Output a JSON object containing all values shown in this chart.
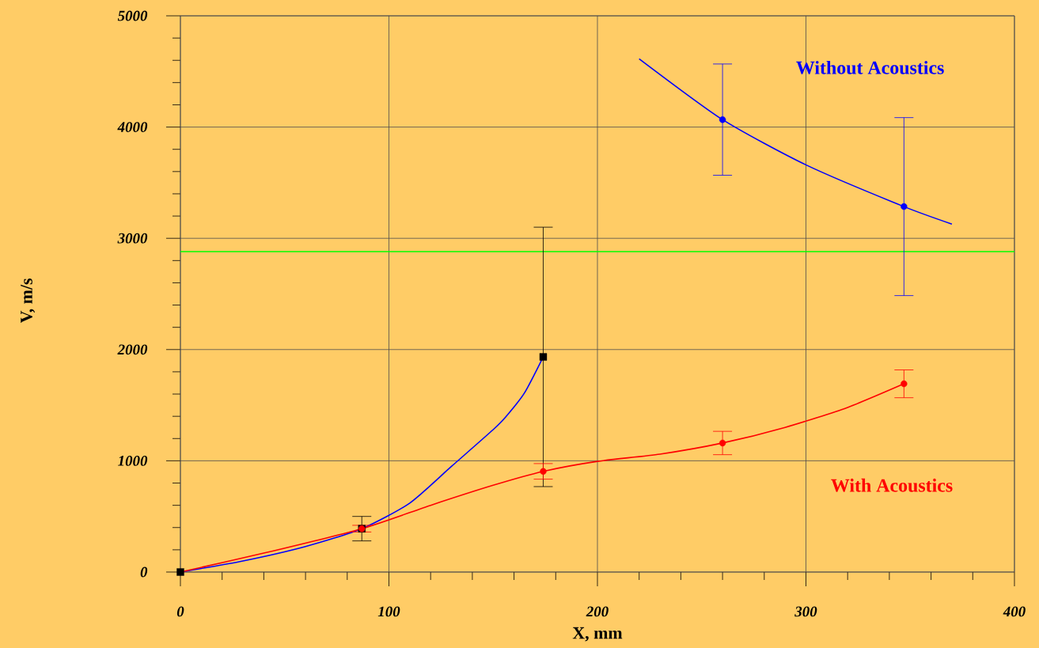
{
  "chart_data": {
    "type": "line",
    "xlabel": "X, mm",
    "ylabel": "V, m/s",
    "xlim": [
      0,
      400
    ],
    "ylim": [
      0,
      5000
    ],
    "xticks": [
      0,
      100,
      200,
      300,
      400
    ],
    "yticks": [
      0,
      1000,
      2000,
      3000,
      4000,
      5000
    ],
    "grid": true,
    "series": [
      {
        "color": "#0000ff",
        "marker": "none",
        "x": [
          0,
          30,
          60,
          87,
          110,
          130,
          150,
          156,
          165,
          174
        ],
        "values": [
          0,
          100,
          230,
          390,
          620,
          950,
          1280,
          1394,
          1610,
          1934
        ]
      },
      {
        "color": "#0000ff",
        "marker": "none",
        "x": [
          220,
          260,
          300,
          347,
          370
        ],
        "values": [
          4614,
          4067,
          3660,
          3285,
          3128
        ]
      },
      {
        "color": "#ff0000",
        "marker": "none",
        "x": [
          0,
          40,
          87,
          120,
          150,
          174,
          200,
          230,
          260,
          290,
          320,
          347
        ],
        "values": [
          0,
          170,
          390,
          600,
          780,
          905,
          995,
          1060,
          1160,
          1300,
          1480,
          1692
        ]
      },
      {
        "type": "scatter",
        "color": "#000000",
        "marker": "square",
        "x": [
          0,
          87,
          174
        ],
        "values": [
          0,
          390,
          1934
        ],
        "errors": [
          null,
          110,
          1166
        ]
      },
      {
        "type": "scatter",
        "color": "#ff0000",
        "marker": "circle",
        "x": [
          87,
          174,
          260,
          347
        ],
        "values": [
          390,
          905,
          1160,
          1692
        ],
        "errors": [
          30,
          70,
          105,
          125
        ]
      },
      {
        "type": "scatter",
        "color": "#0000ff",
        "marker": "circle",
        "x": [
          260,
          347
        ],
        "values": [
          4067,
          3285
        ],
        "errors": [
          500,
          800
        ]
      }
    ],
    "ref_lines": [
      {
        "axis": "y",
        "value": 2880,
        "color": "#00ff00"
      }
    ],
    "annotations": [
      "Without Acoustics",
      "With Acoustics"
    ]
  }
}
